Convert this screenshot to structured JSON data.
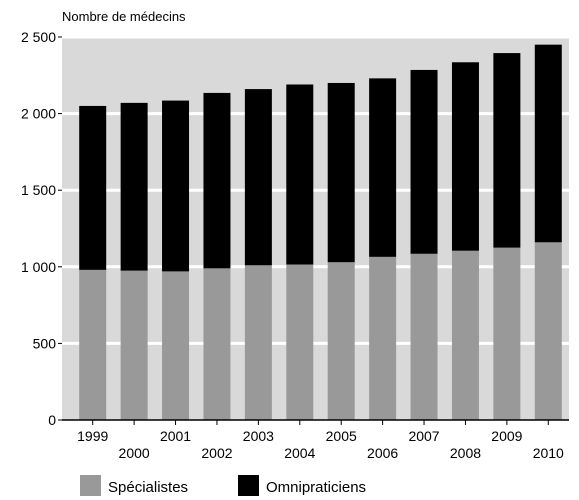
{
  "chart_data": {
    "type": "bar",
    "stacked": true,
    "title": "",
    "xlabel": "",
    "ylabel": "Nombre de médecins",
    "categories": [
      "1999",
      "2000",
      "2001",
      "2002",
      "2003",
      "2004",
      "2005",
      "2006",
      "2007",
      "2008",
      "2009",
      "2010"
    ],
    "series": [
      {
        "name": "Spécialistes",
        "color": "#999999",
        "values": [
          980,
          975,
          970,
          990,
          1010,
          1015,
          1030,
          1065,
          1085,
          1105,
          1125,
          1160
        ]
      },
      {
        "name": "Omnipraticiens",
        "color": "#000000",
        "values": [
          1070,
          1095,
          1115,
          1145,
          1150,
          1175,
          1170,
          1165,
          1200,
          1230,
          1270,
          1290
        ]
      }
    ],
    "ylim": [
      0,
      2500
    ],
    "yticks": [
      0,
      500,
      1000,
      1500,
      2000,
      2500
    ],
    "ytick_labels": [
      "0",
      "500",
      "1 000",
      "1 500",
      "2 000",
      "2 500"
    ],
    "plot_background": "#d9d9d9",
    "gridlines": "white horizontal",
    "legend_position": "bottom-left"
  }
}
